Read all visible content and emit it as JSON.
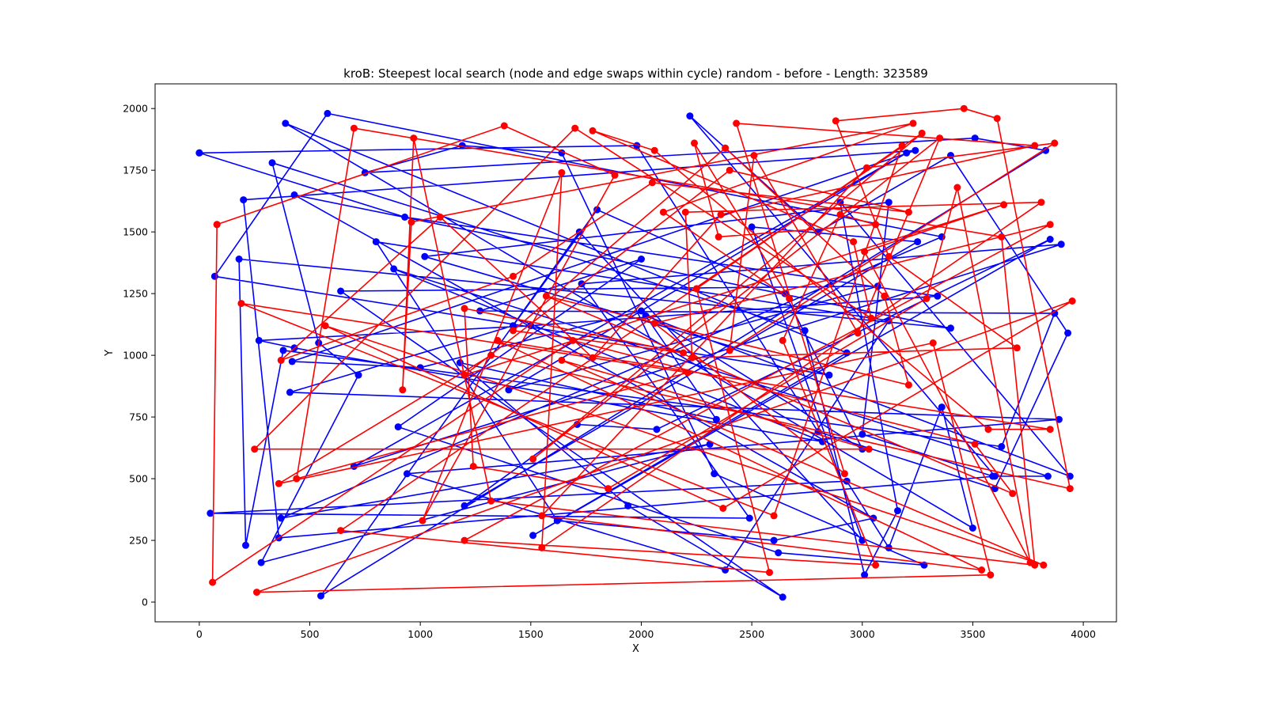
{
  "chart_data": {
    "type": "line",
    "title": "kroB: Steepest local search (node and edge swaps within cycle) random - before - Length: 323589",
    "xlabel": "X",
    "ylabel": "Y",
    "xlim": [
      -200,
      4150
    ],
    "ylim": [
      -80,
      2100
    ],
    "xticks": [
      0,
      500,
      1000,
      1500,
      2000,
      2500,
      3000,
      3500,
      4000
    ],
    "yticks": [
      0,
      250,
      500,
      750,
      1000,
      1250,
      1500,
      1750,
      2000
    ],
    "grid": false,
    "legend": "none",
    "series": [
      {
        "color": "#0000ff",
        "marker": "circle",
        "points": [
          [
            0,
            1820
          ],
          [
            1980,
            1850
          ],
          [
            2800,
            690
          ],
          [
            3600,
            460
          ],
          [
            3930,
            1090
          ],
          [
            3400,
            1810
          ],
          [
            2800,
            1500
          ],
          [
            2220,
            1970
          ],
          [
            3600,
            510
          ],
          [
            360,
            260
          ],
          [
            200,
            1630
          ],
          [
            3240,
            1830
          ],
          [
            420,
            975
          ],
          [
            1000,
            950
          ],
          [
            2000,
            1180
          ],
          [
            3000,
            620
          ],
          [
            2650,
            1250
          ],
          [
            1800,
            1590
          ],
          [
            1420,
            1120
          ],
          [
            410,
            850
          ],
          [
            3890,
            740
          ],
          [
            940,
            520
          ],
          [
            2380,
            130
          ],
          [
            3120,
            1140
          ],
          [
            800,
            1460
          ],
          [
            1620,
            330
          ],
          [
            2600,
            250
          ],
          [
            3050,
            340
          ],
          [
            430,
            1650
          ],
          [
            3400,
            1110
          ],
          [
            180,
            1390
          ],
          [
            210,
            230
          ],
          [
            380,
            1020
          ],
          [
            3630,
            630
          ],
          [
            3870,
            1170
          ],
          [
            1270,
            1180
          ],
          [
            2000,
            1390
          ],
          [
            900,
            710
          ],
          [
            2620,
            200
          ],
          [
            3280,
            150
          ],
          [
            2330,
            520
          ],
          [
            1640,
            1820
          ],
          [
            1190,
            1850
          ],
          [
            750,
            1740
          ],
          [
            3510,
            1880
          ],
          [
            3830,
            1830
          ],
          [
            550,
            25
          ],
          [
            1720,
            1500
          ],
          [
            3000,
            250
          ],
          [
            2500,
            1520
          ],
          [
            3250,
            1460
          ],
          [
            1200,
            390
          ],
          [
            1710,
            720
          ],
          [
            2070,
            700
          ],
          [
            3850,
            1470
          ],
          [
            1510,
            270
          ],
          [
            2930,
            1010
          ],
          [
            390,
            1940
          ],
          [
            3500,
            300
          ],
          [
            3360,
            790
          ],
          [
            3120,
            220
          ],
          [
            2930,
            490
          ],
          [
            50,
            360
          ],
          [
            2490,
            340
          ],
          [
            1730,
            1290
          ],
          [
            3900,
            1450
          ],
          [
            700,
            550
          ],
          [
            3200,
            1820
          ],
          [
            1400,
            860
          ],
          [
            3070,
            1280
          ],
          [
            640,
            1260
          ],
          [
            2640,
            20
          ],
          [
            1940,
            390
          ],
          [
            1180,
            970
          ],
          [
            2340,
            740
          ],
          [
            2020,
            1160
          ],
          [
            3940,
            510
          ],
          [
            2900,
            1620
          ],
          [
            3160,
            370
          ],
          [
            3010,
            110
          ],
          [
            2740,
            1100
          ],
          [
            330,
            1780
          ],
          [
            540,
            1050
          ],
          [
            720,
            920
          ],
          [
            280,
            160
          ],
          [
            2310,
            640
          ],
          [
            370,
            340
          ],
          [
            3360,
            1480
          ],
          [
            580,
            1980
          ],
          [
            70,
            1320
          ],
          [
            2850,
            920
          ],
          [
            1020,
            1400
          ],
          [
            3120,
            1620
          ],
          [
            3000,
            680
          ],
          [
            3590,
            510
          ],
          [
            3840,
            510
          ],
          [
            880,
            1350
          ],
          [
            2820,
            650
          ],
          [
            430,
            1030
          ],
          [
            270,
            1060
          ],
          [
            1500,
            1120
          ],
          [
            3340,
            1240
          ],
          [
            930,
            1560
          ],
          [
            0,
            1820
          ]
        ]
      },
      {
        "color": "#ff0000",
        "marker": "circle",
        "points": [
          [
            80,
            1530
          ],
          [
            1380,
            1930
          ],
          [
            1880,
            1730
          ],
          [
            1010,
            330
          ],
          [
            1640,
            1740
          ],
          [
            1550,
            220
          ],
          [
            3810,
            1620
          ],
          [
            2200,
            1580
          ],
          [
            2230,
            990
          ],
          [
            3700,
            1030
          ],
          [
            3120,
            1400
          ],
          [
            2880,
            1950
          ],
          [
            3460,
            2000
          ],
          [
            3610,
            1960
          ],
          [
            3940,
            460
          ],
          [
            1320,
            1000
          ],
          [
            360,
            480
          ],
          [
            3320,
            1050
          ],
          [
            3580,
            110
          ],
          [
            260,
            40
          ],
          [
            3950,
            1220
          ],
          [
            2370,
            380
          ],
          [
            570,
            1120
          ],
          [
            3820,
            150
          ],
          [
            1640,
            980
          ],
          [
            3030,
            620
          ],
          [
            250,
            620
          ],
          [
            1700,
            1920
          ],
          [
            3040,
            1150
          ],
          [
            2960,
            1460
          ],
          [
            1780,
            1910
          ],
          [
            2060,
            1830
          ],
          [
            3570,
            700
          ],
          [
            3850,
            700
          ],
          [
            1350,
            1060
          ],
          [
            3540,
            130
          ],
          [
            1550,
            350
          ],
          [
            3020,
            1760
          ],
          [
            3870,
            1860
          ],
          [
            2400,
            1020
          ],
          [
            2510,
            1810
          ],
          [
            2980,
            1090
          ],
          [
            3350,
            1880
          ],
          [
            1510,
            580
          ],
          [
            3270,
            1900
          ],
          [
            640,
            290
          ],
          [
            2580,
            120
          ],
          [
            2250,
            1270
          ],
          [
            3180,
            1850
          ],
          [
            2600,
            350
          ],
          [
            190,
            1210
          ],
          [
            2210,
            930
          ],
          [
            440,
            500
          ],
          [
            700,
            1920
          ],
          [
            3630,
            1480
          ],
          [
            3780,
            150
          ],
          [
            1320,
            410
          ],
          [
            970,
            1880
          ],
          [
            920,
            860
          ],
          [
            960,
            1540
          ],
          [
            3230,
            1940
          ],
          [
            2100,
            1580
          ],
          [
            2670,
            1230
          ],
          [
            2240,
            1860
          ],
          [
            2350,
            1480
          ],
          [
            3060,
            1530
          ],
          [
            2900,
            1570
          ],
          [
            2640,
            1060
          ],
          [
            3060,
            150
          ],
          [
            1200,
            250
          ],
          [
            3850,
            1530
          ],
          [
            2060,
            1130
          ],
          [
            2920,
            520
          ],
          [
            2430,
            1940
          ],
          [
            3780,
            1850
          ],
          [
            2360,
            1570
          ],
          [
            1780,
            990
          ],
          [
            1090,
            1560
          ],
          [
            370,
            980
          ],
          [
            1420,
            1320
          ],
          [
            2050,
            1700
          ],
          [
            3210,
            1580
          ],
          [
            2400,
            1750
          ],
          [
            1200,
            920
          ],
          [
            3640,
            1610
          ],
          [
            3010,
            1420
          ],
          [
            3760,
            160
          ],
          [
            3430,
            1680
          ],
          [
            3290,
            1230
          ],
          [
            1850,
            460
          ],
          [
            1240,
            550
          ],
          [
            1200,
            1190
          ],
          [
            2190,
            1010
          ],
          [
            1420,
            1100
          ],
          [
            2380,
            1840
          ],
          [
            3100,
            1240
          ],
          [
            3210,
            880
          ],
          [
            1570,
            1240
          ],
          [
            3680,
            440
          ],
          [
            3510,
            640
          ],
          [
            1690,
            1060
          ],
          [
            60,
            80
          ],
          [
            80,
            1530
          ]
        ]
      }
    ]
  }
}
